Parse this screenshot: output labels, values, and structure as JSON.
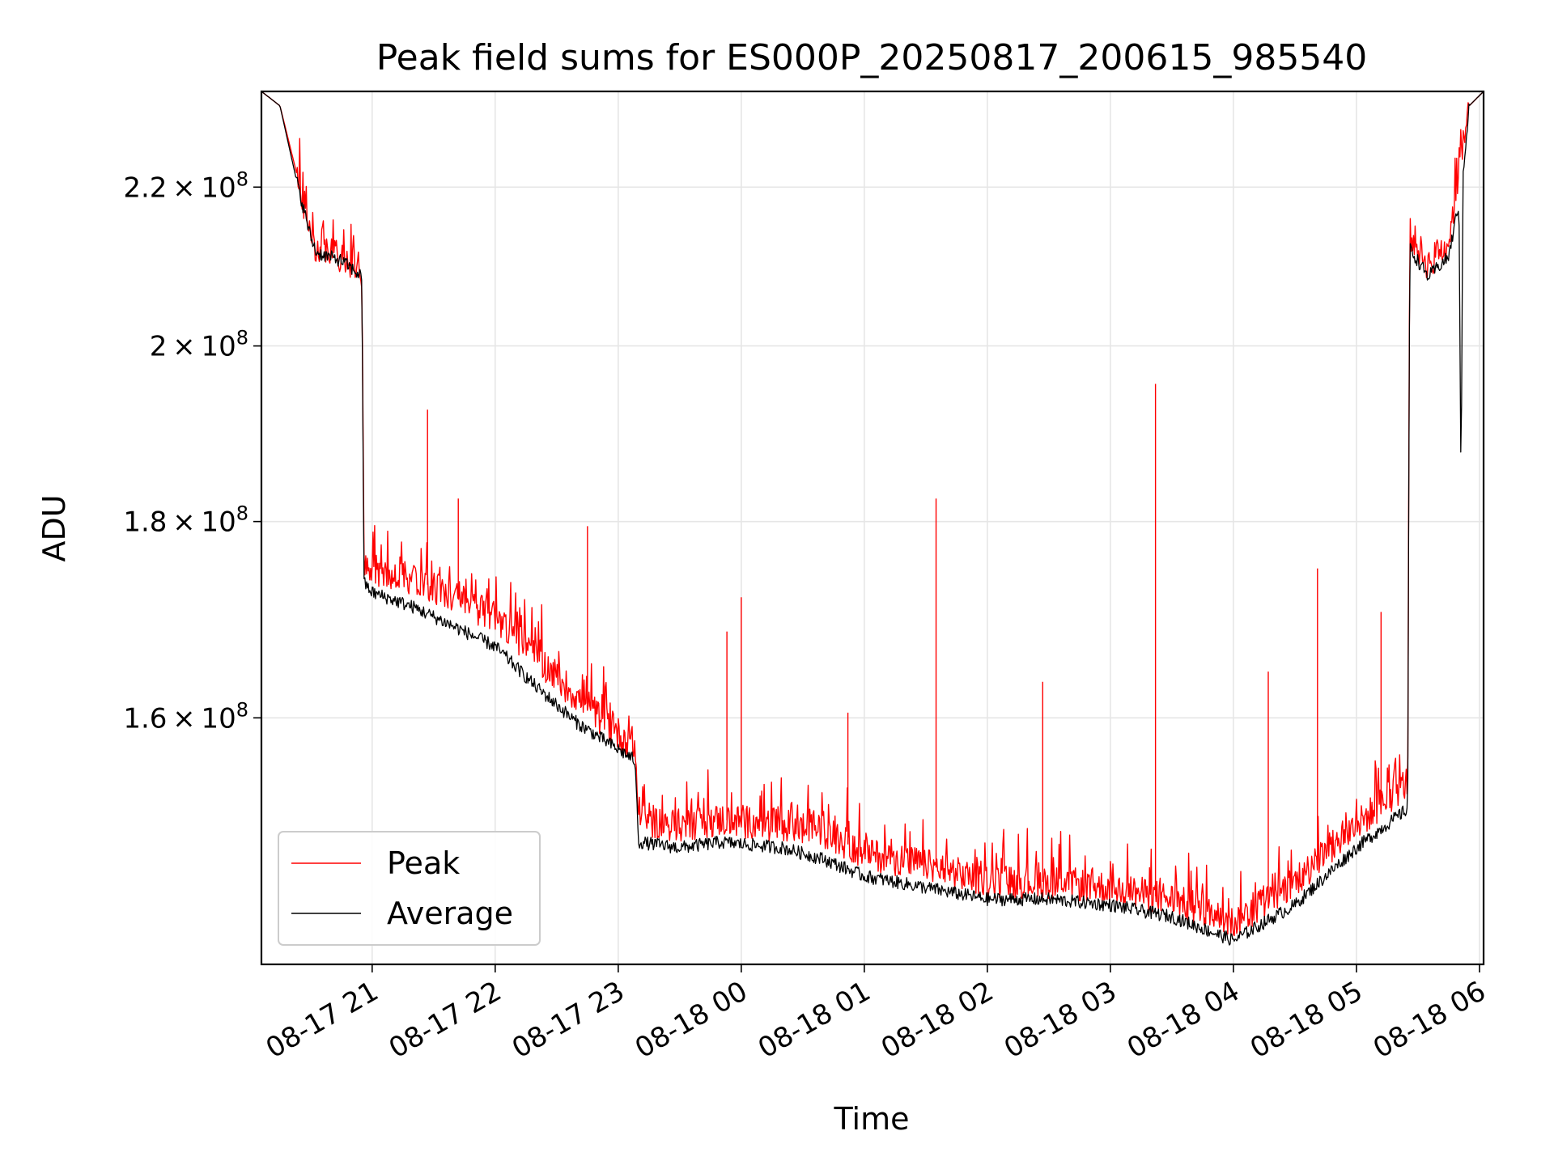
{
  "chart_data": {
    "type": "line",
    "title": "Peak field sums for ES000P_20250817_200615_985540",
    "xlabel": "Time",
    "ylabel": "ADU",
    "y_scale": "log",
    "grid": true,
    "legend_position": "lower-left",
    "xlim": [
      "2025-08-17 20:06",
      "2025-08-18 06:02"
    ],
    "ylim": [
      138000000,
      233000000
    ],
    "x_ticks": [
      {
        "t": "2025-08-17 21:00",
        "label": "08-17 21"
      },
      {
        "t": "2025-08-17 22:00",
        "label": "08-17 22"
      },
      {
        "t": "2025-08-17 23:00",
        "label": "08-17 23"
      },
      {
        "t": "2025-08-18 00:00",
        "label": "08-18 00"
      },
      {
        "t": "2025-08-18 01:00",
        "label": "08-18 01"
      },
      {
        "t": "2025-08-18 02:00",
        "label": "08-18 02"
      },
      {
        "t": "2025-08-18 03:00",
        "label": "08-18 03"
      },
      {
        "t": "2025-08-18 04:00",
        "label": "08-18 04"
      },
      {
        "t": "2025-08-18 05:00",
        "label": "08-18 05"
      },
      {
        "t": "2025-08-18 06:00",
        "label": "08-18 06"
      }
    ],
    "y_ticks": [
      {
        "v": 160000000,
        "mant": "1.6",
        "exp": "8"
      },
      {
        "v": 180000000,
        "mant": "1.8",
        "exp": "8"
      },
      {
        "v": 200000000,
        "mant": "2",
        "exp": "8"
      },
      {
        "v": 220000000,
        "mant": "2.2",
        "exp": "8"
      }
    ],
    "series": [
      {
        "name": "Peak",
        "color": "#ff0000",
        "x": [
          "2025-08-17 20:06",
          "2025-08-17 20:15",
          "2025-08-17 20:23",
          "2025-08-17 20:30",
          "2025-08-17 20:33",
          "2025-08-17 20:45",
          "2025-08-17 20:55",
          "2025-08-17 20:56",
          "2025-08-17 21:00",
          "2025-08-17 21:20",
          "2025-08-17 21:40",
          "2025-08-17 22:00",
          "2025-08-17 22:20",
          "2025-08-17 22:40",
          "2025-08-17 23:00",
          "2025-08-17 23:08",
          "2025-08-17 23:10",
          "2025-08-17 23:30",
          "2025-08-17 23:50",
          "2025-08-18 00:20",
          "2025-08-18 00:40",
          "2025-08-18 01:00",
          "2025-08-18 01:30",
          "2025-08-18 02:00",
          "2025-08-18 02:30",
          "2025-08-18 03:00",
          "2025-08-18 03:30",
          "2025-08-18 04:00",
          "2025-08-18 04:30",
          "2025-08-18 05:00",
          "2025-08-18 05:25",
          "2025-08-18 05:26",
          "2025-08-18 05:35",
          "2025-08-18 05:45",
          "2025-08-18 05:55",
          "2025-08-18 06:02"
        ],
        "y": [
          233000000,
          231000000,
          222000000,
          214000000,
          212000000,
          211000000,
          209000000,
          176000000,
          175000000,
          174000000,
          172000000,
          170000000,
          166000000,
          162000000,
          158500000,
          157500000,
          150500000,
          150000000,
          150500000,
          150000000,
          149500000,
          147500000,
          146500000,
          145000000,
          145000000,
          144500000,
          143500000,
          141500000,
          145000000,
          150000000,
          154000000,
          214000000,
          210000000,
          213000000,
          231000000,
          233000000
        ],
        "spikes": [
          {
            "x": "2025-08-17 21:27",
            "y": 192500000
          },
          {
            "x": "2025-08-17 21:42",
            "y": 182500000
          },
          {
            "x": "2025-08-17 22:45",
            "y": 179500000
          },
          {
            "x": "2025-08-17 23:53",
            "y": 168500000
          },
          {
            "x": "2025-08-18 00:00",
            "y": 172000000
          },
          {
            "x": "2025-08-18 00:52",
            "y": 160500000
          },
          {
            "x": "2025-08-18 01:35",
            "y": 182500000
          },
          {
            "x": "2025-08-18 02:27",
            "y": 163500000
          },
          {
            "x": "2025-08-18 03:22",
            "y": 195500000
          },
          {
            "x": "2025-08-18 04:17",
            "y": 164500000
          },
          {
            "x": "2025-08-18 04:41",
            "y": 175000000
          },
          {
            "x": "2025-08-18 05:12",
            "y": 170500000
          }
        ]
      },
      {
        "name": "Average",
        "color": "#000000",
        "x": [
          "2025-08-17 20:06",
          "2025-08-17 20:15",
          "2025-08-17 20:23",
          "2025-08-17 20:30",
          "2025-08-17 20:33",
          "2025-08-17 20:45",
          "2025-08-17 20:55",
          "2025-08-17 20:56",
          "2025-08-17 21:00",
          "2025-08-17 21:20",
          "2025-08-17 21:40",
          "2025-08-17 22:00",
          "2025-08-17 22:20",
          "2025-08-17 22:40",
          "2025-08-17 23:00",
          "2025-08-17 23:08",
          "2025-08-17 23:10",
          "2025-08-17 23:30",
          "2025-08-17 23:50",
          "2025-08-18 00:20",
          "2025-08-18 00:40",
          "2025-08-18 01:00",
          "2025-08-18 01:30",
          "2025-08-18 02:00",
          "2025-08-18 02:30",
          "2025-08-18 03:00",
          "2025-08-18 03:30",
          "2025-08-18 04:00",
          "2025-08-18 04:30",
          "2025-08-18 05:00",
          "2025-08-18 05:25",
          "2025-08-18 05:26",
          "2025-08-18 05:35",
          "2025-08-18 05:45",
          "2025-08-18 05:50",
          "2025-08-18 05:51",
          "2025-08-18 05:52",
          "2025-08-18 05:55",
          "2025-08-18 06:02"
        ],
        "y": [
          233000000,
          231000000,
          221000000,
          213500000,
          211500000,
          210500000,
          208500000,
          173500000,
          172500000,
          171000000,
          169000000,
          167000000,
          163000000,
          159500000,
          157000000,
          156000000,
          148500000,
          148000000,
          148500000,
          148000000,
          147000000,
          145500000,
          144500000,
          143500000,
          143500000,
          143000000,
          142000000,
          140000000,
          143000000,
          148000000,
          151500000,
          212000000,
          208500000,
          211000000,
          218000000,
          182500000,
          222000000,
          231000000,
          233000000
        ]
      }
    ]
  }
}
